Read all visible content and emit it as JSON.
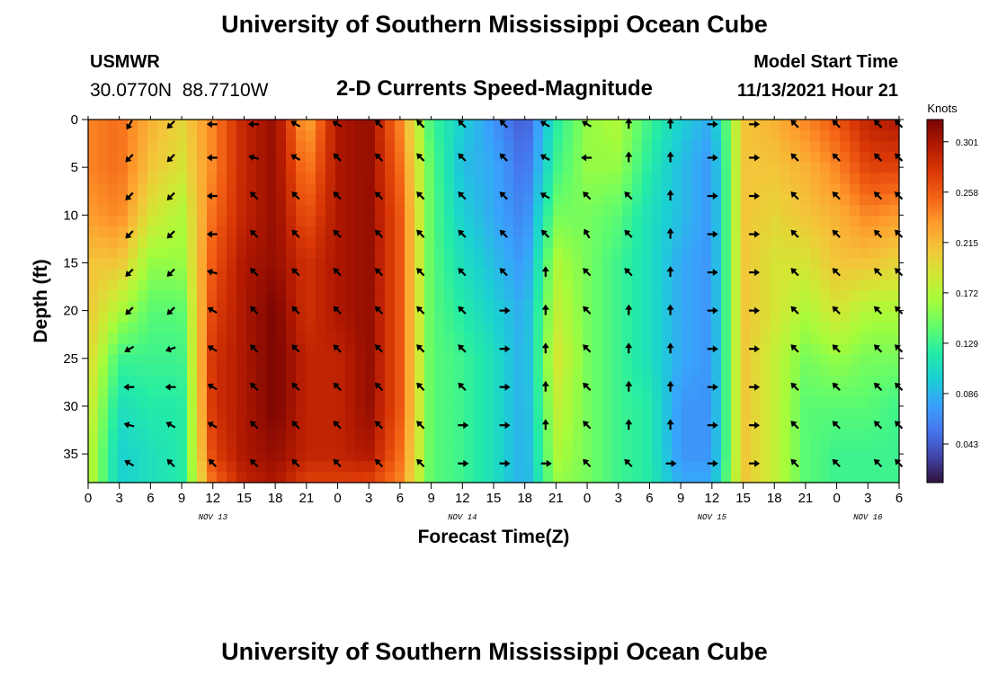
{
  "page": {
    "title": "University of Southern Mississippi Ocean Cube",
    "station": "USMWR",
    "coordinates": "30.0770N  88.7710W",
    "subtitle": "2-D Currents Speed-Magnitude",
    "model_start_label": "Model Start Time",
    "model_start_value": "11/13/2021 Hour 21",
    "footer_title": "University of Southern Mississippi Ocean Cube"
  },
  "chart_data": {
    "type": "heatmap",
    "title": "2-D Currents Speed-Magnitude",
    "xlabel": "Forecast Time(Z)",
    "ylabel": "Depth (ft)",
    "x_unit": "hours since Nov 13 00Z",
    "xlim": [
      0,
      78
    ],
    "ylim": [
      0,
      38
    ],
    "y_inverted": true,
    "x_ticks": [
      0,
      3,
      6,
      9,
      12,
      15,
      18,
      21,
      24,
      27,
      30,
      33,
      36,
      39,
      42,
      45,
      48,
      51,
      54,
      57,
      60,
      63,
      66,
      69,
      72,
      75,
      78
    ],
    "x_tick_labels": [
      "0",
      "3",
      "6",
      "9",
      "12",
      "15",
      "18",
      "21",
      "0",
      "3",
      "6",
      "9",
      "12",
      "15",
      "18",
      "21",
      "0",
      "3",
      "6",
      "9",
      "12",
      "15",
      "18",
      "21",
      "0",
      "3",
      "6"
    ],
    "y_ticks": [
      0,
      5,
      10,
      15,
      20,
      25,
      30,
      35
    ],
    "y_tick_labels": [
      "0",
      "5",
      "10",
      "15",
      "20",
      "25",
      "30",
      "35"
    ],
    "date_labels": [
      {
        "label": "NOV 13",
        "x": 12
      },
      {
        "label": "NOV 14",
        "x": 36
      },
      {
        "label": "NOV 15",
        "x": 60
      },
      {
        "label": "NOV 16",
        "x": 75
      }
    ],
    "colorbar": {
      "label": "Knots",
      "min": 0.01,
      "max": 0.32,
      "tick_values": [
        0.301,
        0.258,
        0.215,
        0.172,
        0.129,
        0.086,
        0.043
      ],
      "tick_labels": [
        "0.301",
        "0.258",
        "0.215",
        "0.172",
        "0.129",
        "0.086",
        "0.043"
      ],
      "colors": [
        "#30123b",
        "#4145ab",
        "#4675ed",
        "#39a2fc",
        "#1bcfd4",
        "#24eca6",
        "#61fc6c",
        "#a4fc3b",
        "#d1e834",
        "#f3c63a",
        "#fe9b2d",
        "#f36315",
        "#d93806",
        "#b11901",
        "#7a0402"
      ]
    },
    "speed_grid": {
      "x_hours": [
        0,
        3,
        6,
        9,
        12,
        15,
        18,
        21,
        24,
        27,
        30,
        33,
        36,
        39,
        42,
        45,
        48,
        51,
        54,
        57,
        60,
        63,
        66,
        69,
        72,
        75,
        78
      ],
      "depths_ft": [
        0,
        5,
        10,
        15,
        20,
        25,
        30,
        35,
        38
      ],
      "values": [
        [
          0.24,
          0.24,
          0.23,
          0.21,
          0.21,
          0.2,
          0.19,
          0.18,
          0.18
        ],
        [
          0.25,
          0.25,
          0.24,
          0.21,
          0.17,
          0.13,
          0.11,
          0.1,
          0.1
        ],
        [
          0.22,
          0.21,
          0.19,
          0.16,
          0.14,
          0.13,
          0.12,
          0.11,
          0.11
        ],
        [
          0.2,
          0.19,
          0.17,
          0.16,
          0.14,
          0.13,
          0.12,
          0.12,
          0.12
        ],
        [
          0.24,
          0.24,
          0.25,
          0.26,
          0.27,
          0.28,
          0.28,
          0.27,
          0.25
        ],
        [
          0.29,
          0.29,
          0.29,
          0.3,
          0.3,
          0.3,
          0.3,
          0.3,
          0.29
        ],
        [
          0.31,
          0.31,
          0.31,
          0.31,
          0.32,
          0.32,
          0.32,
          0.31,
          0.3
        ],
        [
          0.22,
          0.24,
          0.26,
          0.28,
          0.28,
          0.29,
          0.29,
          0.29,
          0.27
        ],
        [
          0.3,
          0.3,
          0.3,
          0.3,
          0.3,
          0.29,
          0.29,
          0.29,
          0.27
        ],
        [
          0.31,
          0.31,
          0.31,
          0.31,
          0.31,
          0.31,
          0.31,
          0.3,
          0.27
        ],
        [
          0.24,
          0.25,
          0.26,
          0.26,
          0.26,
          0.26,
          0.26,
          0.25,
          0.24
        ],
        [
          0.13,
          0.14,
          0.14,
          0.14,
          0.14,
          0.14,
          0.14,
          0.14,
          0.14
        ],
        [
          0.1,
          0.09,
          0.1,
          0.11,
          0.12,
          0.13,
          0.13,
          0.13,
          0.13
        ],
        [
          0.07,
          0.08,
          0.08,
          0.09,
          0.1,
          0.11,
          0.11,
          0.11,
          0.11
        ],
        [
          0.04,
          0.05,
          0.06,
          0.07,
          0.08,
          0.08,
          0.08,
          0.08,
          0.08
        ],
        [
          0.12,
          0.13,
          0.15,
          0.17,
          0.18,
          0.19,
          0.18,
          0.17,
          0.16
        ],
        [
          0.16,
          0.16,
          0.15,
          0.15,
          0.15,
          0.15,
          0.15,
          0.15,
          0.15
        ],
        [
          0.17,
          0.16,
          0.14,
          0.13,
          0.13,
          0.13,
          0.13,
          0.13,
          0.13
        ],
        [
          0.13,
          0.12,
          0.11,
          0.11,
          0.11,
          0.11,
          0.12,
          0.12,
          0.12
        ],
        [
          0.1,
          0.09,
          0.09,
          0.08,
          0.08,
          0.08,
          0.07,
          0.07,
          0.08
        ],
        [
          0.08,
          0.07,
          0.07,
          0.07,
          0.07,
          0.07,
          0.07,
          0.07,
          0.08
        ],
        [
          0.21,
          0.21,
          0.21,
          0.21,
          0.21,
          0.21,
          0.21,
          0.21,
          0.21
        ],
        [
          0.22,
          0.21,
          0.2,
          0.19,
          0.19,
          0.18,
          0.18,
          0.18,
          0.18
        ],
        [
          0.24,
          0.22,
          0.21,
          0.19,
          0.17,
          0.15,
          0.14,
          0.14,
          0.14
        ],
        [
          0.26,
          0.24,
          0.22,
          0.21,
          0.19,
          0.16,
          0.14,
          0.13,
          0.13
        ],
        [
          0.29,
          0.27,
          0.24,
          0.21,
          0.17,
          0.15,
          0.14,
          0.13,
          0.13
        ],
        [
          0.3,
          0.27,
          0.23,
          0.2,
          0.17,
          0.15,
          0.13,
          0.13,
          0.13
        ]
      ]
    },
    "vectors": {
      "x_hours": [
        4,
        8,
        12,
        16,
        20,
        24,
        28,
        32,
        36,
        40,
        44,
        48,
        52,
        56,
        60,
        64,
        68,
        72,
        76,
        78
      ],
      "depths_ft": [
        0.5,
        4,
        8,
        12,
        16,
        20,
        24,
        28,
        32,
        36
      ],
      "directions_deg": [
        [
          210,
          225,
          270,
          270,
          300,
          300,
          315,
          315,
          315,
          315,
          300,
          300,
          0,
          0,
          90,
          90,
          315,
          315,
          315,
          315
        ],
        [
          225,
          225,
          270,
          285,
          300,
          315,
          315,
          315,
          315,
          315,
          300,
          270,
          0,
          0,
          90,
          90,
          315,
          315,
          315,
          315
        ],
        [
          225,
          225,
          270,
          315,
          315,
          315,
          315,
          315,
          315,
          315,
          300,
          315,
          315,
          0,
          90,
          90,
          315,
          315,
          315,
          315
        ],
        [
          225,
          225,
          270,
          315,
          315,
          315,
          315,
          315,
          315,
          315,
          315,
          330,
          315,
          0,
          90,
          90,
          315,
          315,
          315,
          315
        ],
        [
          225,
          225,
          285,
          315,
          315,
          315,
          315,
          315,
          315,
          315,
          0,
          315,
          315,
          0,
          90,
          90,
          315,
          315,
          315,
          315
        ],
        [
          225,
          225,
          300,
          315,
          315,
          315,
          315,
          315,
          315,
          90,
          0,
          315,
          0,
          0,
          90,
          90,
          315,
          315,
          315,
          315
        ],
        [
          240,
          250,
          300,
          315,
          315,
          315,
          315,
          315,
          315,
          90,
          0,
          315,
          0,
          0,
          90,
          90,
          315,
          315,
          315,
          315
        ],
        [
          270,
          270,
          300,
          315,
          315,
          315,
          315,
          315,
          315,
          90,
          0,
          315,
          0,
          0,
          90,
          90,
          315,
          315,
          315,
          315
        ],
        [
          285,
          300,
          300,
          315,
          315,
          315,
          315,
          315,
          90,
          90,
          0,
          315,
          0,
          0,
          90,
          90,
          315,
          315,
          315,
          315
        ],
        [
          300,
          315,
          315,
          315,
          315,
          315,
          315,
          315,
          90,
          90,
          90,
          315,
          315,
          90,
          90,
          90,
          315,
          315,
          315,
          315
        ]
      ]
    }
  }
}
